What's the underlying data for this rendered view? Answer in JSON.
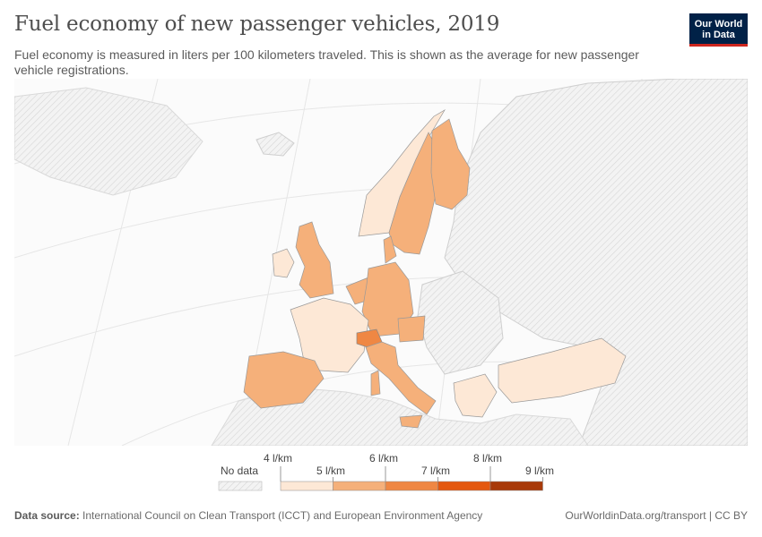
{
  "header": {
    "title": "Fuel economy of new passenger vehicles, 2019",
    "subtitle": "Fuel economy is measured in liters per 100 kilometers traveled. This is shown as the average for new passenger vehicle registrations."
  },
  "logo": {
    "line1": "Our World",
    "line2": "in Data"
  },
  "legend": {
    "no_data_label": "No data",
    "upper_labels": [
      "4 l/km",
      "6 l/km",
      "8 l/km"
    ],
    "lower_labels": [
      "5 l/km",
      "7 l/km",
      "9 l/km"
    ],
    "bin_colors": [
      "#fde8d6",
      "#f5b07a",
      "#ef8743",
      "#e4580f",
      "#a83a0a"
    ]
  },
  "footer": {
    "source_label": "Data source:",
    "source_text": "International Council on Clean Transport (ICCT) and European Environment Agency",
    "credit": "OurWorldinData.org/transport | CC BY"
  },
  "colors": {
    "no_data": "#ececec",
    "background_land": "#f5f5f5",
    "border": "#999999"
  }
}
